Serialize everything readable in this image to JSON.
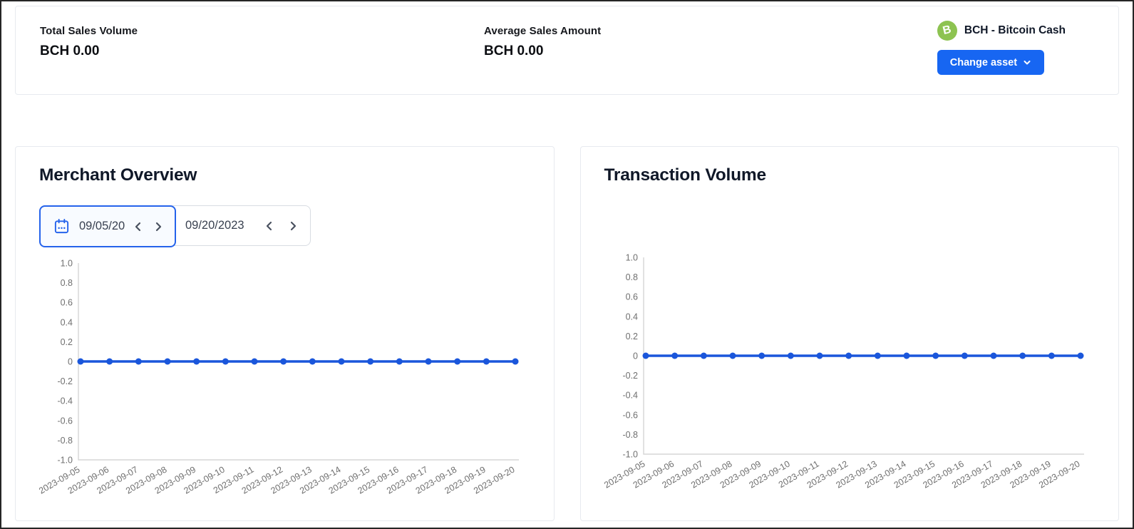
{
  "summary": {
    "stats": [
      {
        "label": "Total Sales Volume",
        "value": "BCH 0.00"
      },
      {
        "label": "Average Sales Amount",
        "value": "BCH 0.00"
      }
    ],
    "asset": {
      "name": "BCH - Bitcoin Cash",
      "icon_letter": "B",
      "icon_color": "#8dc351",
      "change_button_label": "Change asset"
    }
  },
  "date_range_picker": {
    "start_value": "09/05/20",
    "end_value": "09/20/2023"
  },
  "panels": [
    {
      "title": "Merchant Overview"
    },
    {
      "title": "Transaction Volume"
    }
  ],
  "colors": {
    "accent_blue": "#1766f2",
    "picker_focus_blue": "#2563eb",
    "line_blue": "#1a56db",
    "axis_gray": "#d5d5d5",
    "tick_label_gray": "#6f6f6f"
  },
  "chart_data": [
    {
      "type": "line",
      "title": "Merchant Overview",
      "x": [
        "2023-09-05",
        "2023-09-06",
        "2023-09-07",
        "2023-09-08",
        "2023-09-09",
        "2023-09-10",
        "2023-09-11",
        "2023-09-12",
        "2023-09-13",
        "2023-09-14",
        "2023-09-15",
        "2023-09-16",
        "2023-09-17",
        "2023-09-18",
        "2023-09-19",
        "2023-09-20"
      ],
      "series": [
        {
          "name": "Merchant Overview",
          "values": [
            0,
            0,
            0,
            0,
            0,
            0,
            0,
            0,
            0,
            0,
            0,
            0,
            0,
            0,
            0,
            0
          ]
        }
      ],
      "ylim": [
        -1.0,
        1.0
      ],
      "ytick_labels": [
        "1.0",
        "0.8",
        "0.6",
        "0.4",
        "0.2",
        "0",
        "-0.2",
        "-0.4",
        "-0.6",
        "-0.8",
        "-1.0"
      ],
      "grid": false,
      "legend": false
    },
    {
      "type": "line",
      "title": "Transaction Volume",
      "x": [
        "2023-09-05",
        "2023-09-06",
        "2023-09-07",
        "2023-09-08",
        "2023-09-09",
        "2023-09-10",
        "2023-09-11",
        "2023-09-12",
        "2023-09-13",
        "2023-09-14",
        "2023-09-15",
        "2023-09-16",
        "2023-09-17",
        "2023-09-18",
        "2023-09-19",
        "2023-09-20"
      ],
      "series": [
        {
          "name": "Transaction Volume",
          "values": [
            0,
            0,
            0,
            0,
            0,
            0,
            0,
            0,
            0,
            0,
            0,
            0,
            0,
            0,
            0,
            0
          ]
        }
      ],
      "ylim": [
        -1.0,
        1.0
      ],
      "ytick_labels": [
        "1.0",
        "0.8",
        "0.6",
        "0.4",
        "0.2",
        "0",
        "-0.2",
        "-0.4",
        "-0.6",
        "-0.8",
        "-1.0"
      ],
      "grid": false,
      "legend": false
    }
  ]
}
